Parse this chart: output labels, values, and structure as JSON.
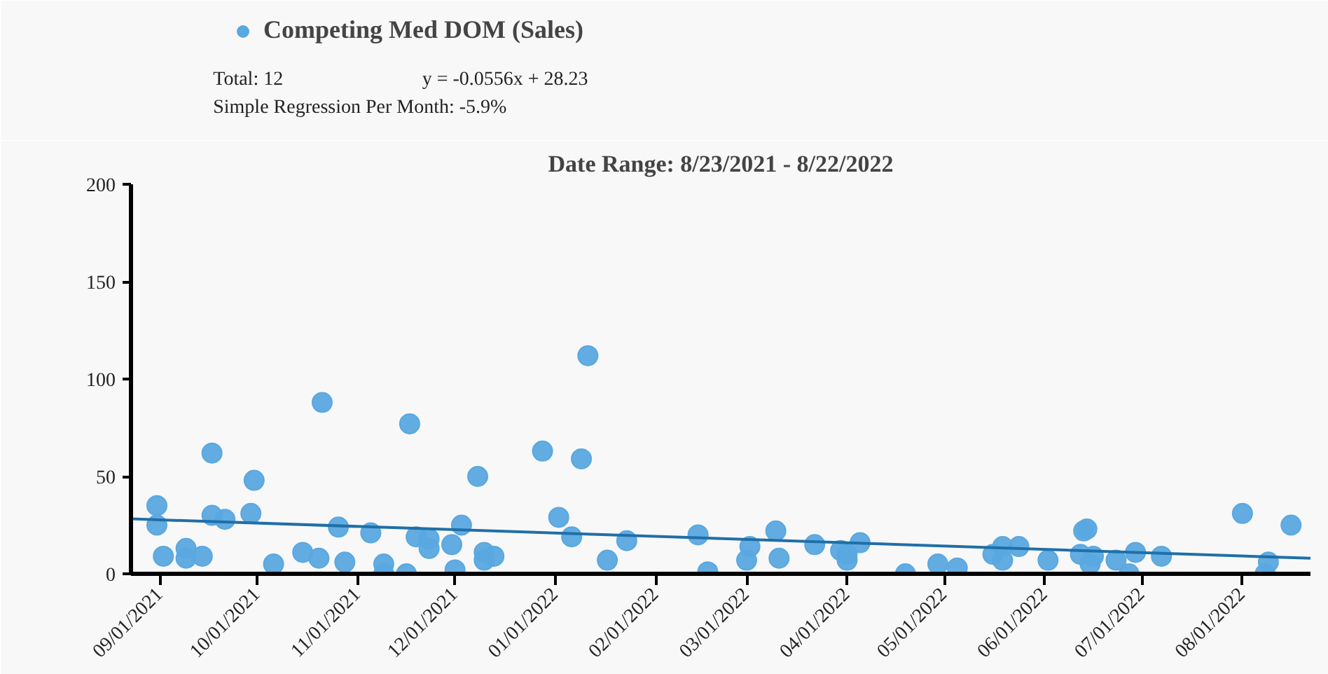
{
  "chart_data": {
    "type": "scatter",
    "title": "Date Range: 8/23/2021 - 8/22/2022",
    "annotations": [
      "Total: 12",
      "y = -0.0556x + 28.23",
      "Simple Regression Per Month: -5.9%"
    ],
    "xlim": [
      "2021-08-23",
      "2022-08-22"
    ],
    "ylim": [
      0,
      200
    ],
    "yticks": [
      0,
      50,
      100,
      150,
      200
    ],
    "xticks": [
      {
        "value": "2021-09-01",
        "label": "09/01/2021"
      },
      {
        "value": "2021-10-01",
        "label": "10/01/2021"
      },
      {
        "value": "2021-11-01",
        "label": "11/01/2021"
      },
      {
        "value": "2021-12-01",
        "label": "12/01/2021"
      },
      {
        "value": "2022-01-01",
        "label": "01/01/2022"
      },
      {
        "value": "2022-02-01",
        "label": "02/01/2022"
      },
      {
        "value": "2022-03-01",
        "label": "03/01/2022"
      },
      {
        "value": "2022-04-01",
        "label": "04/01/2022"
      },
      {
        "value": "2022-05-01",
        "label": "05/01/2022"
      },
      {
        "value": "2022-06-01",
        "label": "06/01/2022"
      },
      {
        "value": "2022-07-01",
        "label": "07/01/2022"
      },
      {
        "value": "2022-08-01",
        "label": "08/01/2022"
      }
    ],
    "grid": false,
    "legend": "top left",
    "series": [
      {
        "name": "Competing Med DOM (Sales)",
        "marker": "circle",
        "color": "#5aa8e0",
        "x": [
          "2021-08-31",
          "2021-08-31",
          "2021-09-02",
          "2021-09-09",
          "2021-09-09",
          "2021-09-14",
          "2021-09-17",
          "2021-09-17",
          "2021-09-21",
          "2021-09-29",
          "2021-09-30",
          "2021-10-06",
          "2021-10-15",
          "2021-10-20",
          "2021-10-21",
          "2021-10-26",
          "2021-10-28",
          "2021-11-05",
          "2021-11-09",
          "2021-11-09",
          "2021-11-16",
          "2021-11-17",
          "2021-11-19",
          "2021-11-23",
          "2021-11-23",
          "2021-11-30",
          "2021-12-01",
          "2021-12-03",
          "2021-12-08",
          "2021-12-10",
          "2021-12-10",
          "2021-12-13",
          "2021-12-28",
          "2022-01-02",
          "2022-01-06",
          "2022-01-09",
          "2022-01-11",
          "2022-01-17",
          "2022-01-23",
          "2022-02-14",
          "2022-02-17",
          "2022-03-01",
          "2022-03-02",
          "2022-03-10",
          "2022-03-11",
          "2022-03-22",
          "2022-03-30",
          "2022-04-01",
          "2022-04-01",
          "2022-04-05",
          "2022-04-19",
          "2022-04-29",
          "2022-05-05",
          "2022-05-16",
          "2022-05-19",
          "2022-05-19",
          "2022-05-24",
          "2022-06-02",
          "2022-06-12",
          "2022-06-13",
          "2022-06-14",
          "2022-06-15",
          "2022-06-16",
          "2022-06-23",
          "2022-06-27",
          "2022-06-29",
          "2022-07-07",
          "2022-08-01",
          "2022-08-08",
          "2022-08-09",
          "2022-08-16"
        ],
        "values": [
          35,
          25,
          9,
          13,
          8,
          9,
          62,
          30,
          28,
          31,
          48,
          5,
          11,
          8,
          88,
          24,
          6,
          21,
          5,
          0,
          0,
          77,
          19,
          18,
          13,
          15,
          2,
          25,
          50,
          11,
          7,
          9,
          63,
          29,
          19,
          59,
          112,
          7,
          17,
          20,
          1,
          7,
          14,
          22,
          8,
          15,
          12,
          10,
          7,
          16,
          0,
          5,
          3,
          10,
          14,
          7,
          14,
          7,
          10,
          22,
          23,
          5,
          9,
          7,
          0,
          11,
          9,
          31,
          0,
          6,
          25
        ]
      },
      {
        "type": "line",
        "color": "#1f6fa8",
        "x": [
          "2021-08-23",
          "2022-08-22"
        ],
        "values": [
          28.2,
          8.0
        ],
        "line_style": "solid"
      }
    ]
  }
}
